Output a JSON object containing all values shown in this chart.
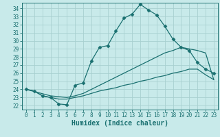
{
  "xlabel": "Humidex (Indice chaleur)",
  "bg_color": "#c8eaea",
  "grid_color": "#a8d0d0",
  "line_color": "#1a7070",
  "xlim": [
    -0.5,
    23.5
  ],
  "ylim": [
    21.5,
    34.7
  ],
  "xticks": [
    0,
    1,
    2,
    3,
    4,
    5,
    6,
    7,
    8,
    9,
    10,
    11,
    12,
    13,
    14,
    15,
    16,
    17,
    18,
    19,
    20,
    21,
    22,
    23
  ],
  "yticks": [
    22,
    23,
    24,
    25,
    26,
    27,
    28,
    29,
    30,
    31,
    32,
    33,
    34
  ],
  "line1_x": [
    0,
    1,
    2,
    3,
    4,
    5,
    6,
    7,
    8,
    9,
    10,
    11,
    12,
    13,
    14,
    15,
    16,
    17,
    18,
    19,
    20,
    21,
    22,
    23
  ],
  "line1_y": [
    24.0,
    23.8,
    23.2,
    23.0,
    22.2,
    22.1,
    24.5,
    24.8,
    27.5,
    29.2,
    29.4,
    31.2,
    32.8,
    33.3,
    34.5,
    33.8,
    33.2,
    31.8,
    30.2,
    29.2,
    28.8,
    27.3,
    26.5,
    26.0
  ],
  "line2_x": [
    0,
    3,
    5,
    6,
    7,
    8,
    9,
    10,
    11,
    12,
    13,
    14,
    15,
    16,
    17,
    18,
    19,
    20,
    21,
    22,
    23
  ],
  "line2_y": [
    24.0,
    23.2,
    23.0,
    23.2,
    23.5,
    24.0,
    24.5,
    25.0,
    25.5,
    26.0,
    26.5,
    27.0,
    27.5,
    28.0,
    28.5,
    28.8,
    29.2,
    29.0,
    28.8,
    28.5,
    25.2
  ],
  "line3_x": [
    0,
    1,
    2,
    3,
    4,
    5,
    6,
    7,
    8,
    9,
    10,
    11,
    12,
    13,
    14,
    15,
    16,
    17,
    18,
    19,
    20,
    21,
    22,
    23
  ],
  "line3_y": [
    24.0,
    23.8,
    23.2,
    23.0,
    22.8,
    22.8,
    23.0,
    23.2,
    23.5,
    23.8,
    24.0,
    24.2,
    24.5,
    24.7,
    25.0,
    25.2,
    25.5,
    25.7,
    26.0,
    26.2,
    26.5,
    26.5,
    25.8,
    25.2
  ],
  "markersize": 2.5,
  "linewidth": 0.9,
  "xlabel_fontsize": 7,
  "tick_fontsize": 5.5
}
